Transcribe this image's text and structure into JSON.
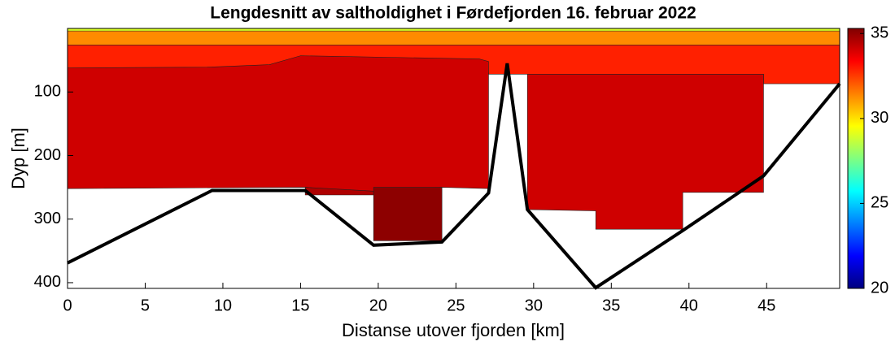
{
  "chart_data": {
    "type": "contour",
    "title": "Lengdesnitt av saltholdighet i Førdefjorden 16. februar 2022",
    "xlabel": "Distanse utover fjorden [km]",
    "ylabel": "Dyp [m]",
    "xlim": [
      0,
      49.7
    ],
    "xticks": [
      0,
      5,
      10,
      15,
      20,
      25,
      30,
      35,
      40,
      45
    ],
    "ylim": [
      0,
      409
    ],
    "yticks": [
      100,
      200,
      300,
      400
    ],
    "y_reversed": true,
    "colorbar": {
      "colormap": "jet",
      "clim": [
        20,
        35.3
      ],
      "ticks": [
        20,
        25,
        30,
        35
      ]
    },
    "regions": [
      {
        "level": 31.3,
        "x": [
          0,
          49.7,
          49.7,
          0
        ],
        "y": [
          0,
          0,
          27,
          27
        ]
      },
      {
        "level": 29,
        "x": [
          0,
          49.7,
          49.7,
          0
        ],
        "y": [
          0,
          0,
          4,
          4
        ]
      },
      {
        "level": 32.9,
        "x": [
          0,
          49.7,
          49.7,
          44.8,
          44.8,
          27.1,
          27.1,
          0
        ],
        "y": [
          26,
          26,
          87,
          87,
          72,
          72,
          70,
          70
        ]
      },
      {
        "level": 34.1,
        "x": [
          0,
          9,
          13,
          15,
          26.5,
          27.1,
          27.1,
          24.1,
          19.7,
          15.3,
          0
        ],
        "y": [
          62,
          61,
          57,
          43,
          48,
          52,
          252,
          250,
          258,
          250,
          252
        ]
      },
      {
        "level": 34.1,
        "x": [
          29.6,
          44.8,
          44.8,
          39.6,
          39.6,
          34,
          34,
          29.6
        ],
        "y": [
          72,
          72,
          258,
          258,
          316,
          316,
          287,
          285
        ]
      },
      {
        "level": 34.6,
        "x": [
          15.3,
          19.7,
          19.7,
          15.3
        ],
        "y": [
          250,
          256,
          262,
          262
        ]
      },
      {
        "level": 35.1,
        "x": [
          19.7,
          24.1,
          24.1,
          19.7
        ],
        "y": [
          250,
          250,
          334,
          334
        ]
      }
    ],
    "bathymetry": {
      "color": "#000000",
      "x": [
        0,
        9.3,
        15.3,
        19.7,
        24.1,
        27.1,
        28.3,
        29.6,
        34,
        39.6,
        44.8,
        49.7
      ],
      "y": [
        369,
        255,
        255,
        341,
        336,
        259,
        55,
        285,
        408,
        318,
        232,
        87
      ]
    }
  }
}
